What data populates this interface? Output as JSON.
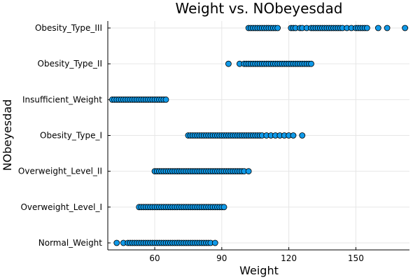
{
  "chart_data": {
    "type": "scatter",
    "title": "Weight vs. NObeyesdad",
    "xlabel": "Weight",
    "ylabel": "NObeyesdad",
    "xlim": [
      39,
      174
    ],
    "x_ticks": [
      60,
      90,
      120,
      150
    ],
    "grid": true,
    "legend": "none",
    "point_color": "#0f99e8",
    "categories": [
      "Normal_Weight",
      "Overweight_Level_I",
      "Overweight_Level_II",
      "Obesity_Type_I",
      "Insufficient_Weight",
      "Obesity_Type_II",
      "Obesity_Type_III"
    ],
    "series": [
      {
        "category": "Obesity_Type_III",
        "x": [
          102,
          103,
          104,
          105,
          106,
          107,
          108,
          109,
          110,
          111,
          112,
          113,
          114,
          115,
          121,
          122,
          123,
          125,
          126,
          128,
          130,
          131,
          132,
          133,
          134,
          135,
          136,
          137,
          138,
          139,
          140,
          141,
          142,
          143,
          144,
          146,
          148,
          150,
          151,
          152,
          153,
          154,
          155,
          160,
          164,
          172
        ]
      },
      {
        "category": "Obesity_Type_II",
        "x": [
          93,
          98,
          100,
          101,
          102,
          103,
          104,
          105,
          106,
          107,
          108,
          109,
          110,
          111,
          112,
          113,
          114,
          115,
          116,
          117,
          118,
          119,
          120,
          121,
          122,
          123,
          124,
          125,
          126,
          127,
          128,
          129,
          130
        ]
      },
      {
        "category": "Insufficient_Weight",
        "x": [
          41,
          42,
          43,
          44,
          45,
          46,
          47,
          48,
          49,
          50,
          51,
          52,
          53,
          54,
          55,
          56,
          57,
          58,
          59,
          60,
          61,
          62,
          63,
          64,
          65
        ]
      },
      {
        "category": "Obesity_Type_I",
        "x": [
          75,
          76,
          77,
          78,
          79,
          80,
          81,
          82,
          83,
          84,
          85,
          86,
          87,
          88,
          89,
          90,
          91,
          92,
          93,
          94,
          95,
          96,
          97,
          98,
          99,
          100,
          101,
          102,
          103,
          104,
          105,
          106,
          107,
          108,
          110,
          112,
          114,
          116,
          118,
          120,
          122,
          126
        ]
      },
      {
        "category": "Overweight_Level_II",
        "x": [
          60,
          61,
          62,
          63,
          64,
          65,
          66,
          67,
          68,
          69,
          70,
          71,
          72,
          73,
          74,
          75,
          76,
          77,
          78,
          79,
          80,
          81,
          82,
          83,
          84,
          85,
          86,
          87,
          88,
          89,
          90,
          91,
          92,
          93,
          94,
          95,
          96,
          97,
          98,
          99,
          100,
          102
        ]
      },
      {
        "category": "Overweight_Level_I",
        "x": [
          53,
          54,
          55,
          56,
          57,
          58,
          59,
          60,
          61,
          62,
          63,
          64,
          65,
          66,
          67,
          68,
          69,
          70,
          71,
          72,
          73,
          74,
          75,
          76,
          77,
          78,
          79,
          80,
          81,
          82,
          83,
          84,
          85,
          86,
          87,
          88,
          89,
          90,
          91
        ]
      },
      {
        "category": "Normal_Weight",
        "x": [
          43,
          46,
          48,
          49,
          50,
          51,
          52,
          53,
          54,
          55,
          56,
          57,
          58,
          59,
          60,
          61,
          62,
          63,
          64,
          65,
          66,
          67,
          68,
          69,
          70,
          71,
          72,
          73,
          74,
          75,
          76,
          77,
          78,
          79,
          80,
          81,
          82,
          83,
          84,
          85,
          87
        ]
      }
    ]
  }
}
